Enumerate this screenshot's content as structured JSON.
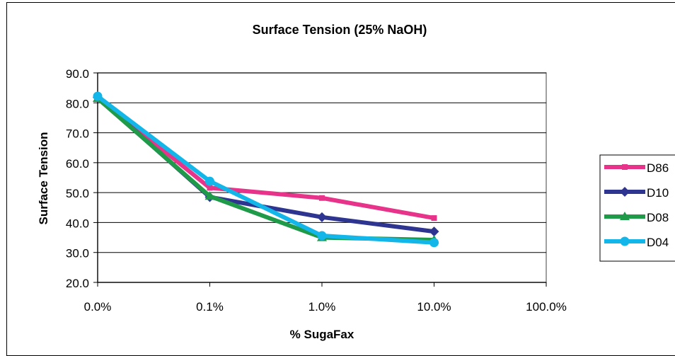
{
  "chart_data": {
    "type": "line",
    "title": "Surface Tension (25% NaOH)",
    "xlabel": "% SugaFax",
    "ylabel": "Surface Tension",
    "x_scale": "log",
    "x_ticks": [
      "0.0%",
      "0.1%",
      "1.0%",
      "10.0%",
      "100.0%"
    ],
    "categories": [
      "0.0%",
      "0.1%",
      "1.0%",
      "10.0%"
    ],
    "ylim": [
      20,
      90
    ],
    "y_ticks": [
      "20.0",
      "30.0",
      "40.0",
      "50.0",
      "60.0",
      "70.0",
      "80.0",
      "90.0"
    ],
    "grid": "horizontal",
    "legend_position": "right",
    "series": [
      {
        "name": "D86",
        "color": "#e8338a",
        "marker": "square",
        "values": [
          81.8,
          51.6,
          48.2,
          41.5
        ]
      },
      {
        "name": "D10",
        "color": "#2e3590",
        "marker": "diamond",
        "values": [
          81.8,
          48.5,
          41.8,
          37.0
        ]
      },
      {
        "name": "D08",
        "color": "#1f9a48",
        "marker": "triangle",
        "values": [
          81.5,
          48.8,
          35.0,
          34.2
        ]
      },
      {
        "name": "D04",
        "color": "#13b6e8",
        "marker": "circle",
        "values": [
          82.2,
          53.8,
          35.6,
          33.3
        ]
      }
    ]
  }
}
